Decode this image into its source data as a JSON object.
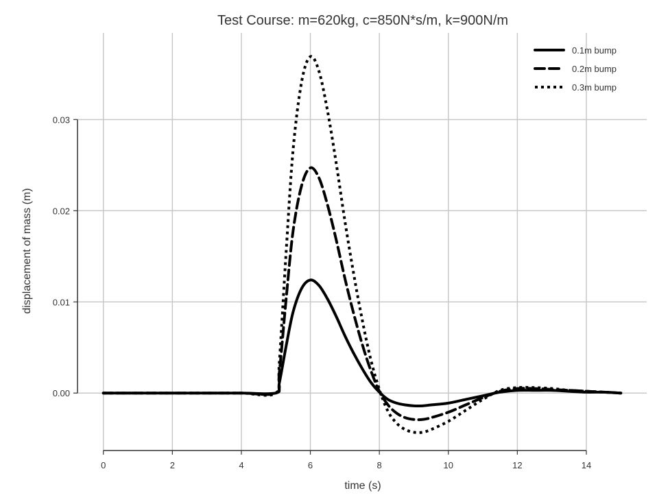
{
  "chart_data": {
    "type": "line",
    "title": "Test Course: m=620kg, c=850N*s/m, k=900N/m",
    "xlabel": "time (s)",
    "ylabel": "displacement of mass (m)",
    "xlim": [
      -0.75,
      15.75
    ],
    "ylim": [
      -0.0063,
      0.0395
    ],
    "xticks": [
      0,
      2,
      4,
      6,
      8,
      10,
      12,
      14
    ],
    "yticks": [
      0.0,
      0.01,
      0.02,
      0.03
    ],
    "ytick_labels": [
      "0.00",
      "0.01",
      "0.02",
      "0.03"
    ],
    "grid": true,
    "legend_position": "top-right",
    "x": [
      0,
      1,
      2,
      3,
      4,
      5,
      5.1,
      5.3,
      5.5,
      5.75,
      6.0,
      6.25,
      6.5,
      6.75,
      7.0,
      7.25,
      7.5,
      7.75,
      8.0,
      8.25,
      8.5,
      8.75,
      9.0,
      9.25,
      9.5,
      10.0,
      10.5,
      11.0,
      11.5,
      12.0,
      12.5,
      13.0,
      13.5,
      14.0,
      14.5,
      15.0
    ],
    "series": [
      {
        "name": "0.1m bump",
        "line_style": "solid",
        "values": [
          0,
          0,
          0,
          0,
          0,
          0,
          0.0011,
          0.0052,
          0.0089,
          0.0115,
          0.0124,
          0.0118,
          0.0103,
          0.0084,
          0.0063,
          0.0044,
          0.0027,
          0.0012,
          0.0001,
          -0.0007,
          -0.0011,
          -0.0013,
          -0.0014,
          -0.0014,
          -0.0013,
          -0.0011,
          -0.0007,
          -0.0003,
          0.0001,
          0.0003,
          0.0003,
          0.0003,
          0.0002,
          0.0001,
          0.0001,
          0.0
        ]
      },
      {
        "name": "0.2m bump",
        "line_style": "dashed",
        "values": [
          0,
          0,
          0,
          0,
          0,
          0,
          0.0022,
          0.0104,
          0.0178,
          0.0228,
          0.0247,
          0.0236,
          0.0206,
          0.0168,
          0.0126,
          0.0088,
          0.0054,
          0.0025,
          0.0002,
          -0.0013,
          -0.0022,
          -0.0027,
          -0.0029,
          -0.0029,
          -0.0027,
          -0.0021,
          -0.0013,
          -0.0005,
          0.0002,
          0.0005,
          0.0005,
          0.0004,
          0.0003,
          0.0002,
          0.0001,
          0.0
        ]
      },
      {
        "name": "0.3m bump",
        "line_style": "dotted",
        "values": [
          0,
          0,
          0,
          0,
          0,
          0,
          0.0033,
          0.0156,
          0.0267,
          0.0342,
          0.0369,
          0.0353,
          0.0309,
          0.0252,
          0.0189,
          0.0132,
          0.0081,
          0.0037,
          0.0004,
          -0.002,
          -0.0033,
          -0.004,
          -0.0043,
          -0.0043,
          -0.004,
          -0.0031,
          -0.0019,
          -0.0007,
          0.0003,
          0.0006,
          0.0006,
          0.0005,
          0.0003,
          0.0002,
          0.0001,
          0.0
        ]
      }
    ]
  }
}
